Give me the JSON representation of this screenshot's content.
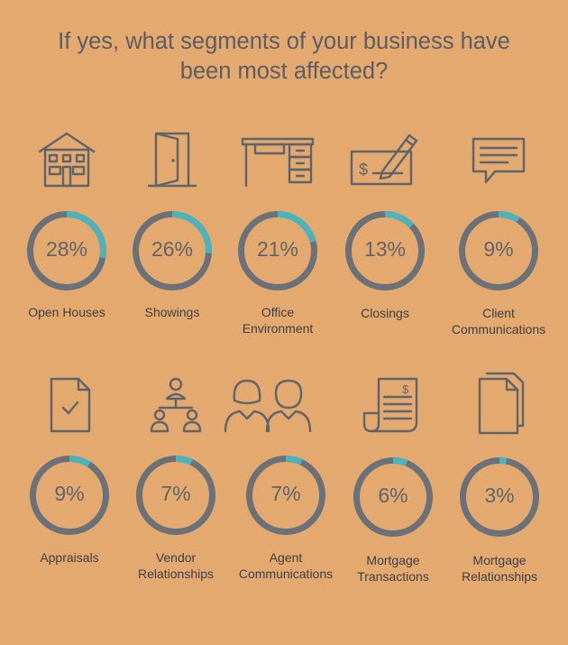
{
  "title": {
    "line1": "If yes, what segments of your business have",
    "line2": "been most affected?"
  },
  "colors": {
    "background": "#e4a96f",
    "ring_track": "#6b7178",
    "ring_value": "#4bb3bd"
  },
  "chart_data": {
    "type": "donut",
    "categories": [
      "Open Houses",
      "Showings",
      "Office Environment",
      "Closings",
      "Client Communications",
      "Appraisals",
      "Vendor Relationships",
      "Agent Communications",
      "Mortgage Transactions",
      "Mortgage Relationships"
    ],
    "values": [
      28,
      26,
      21,
      13,
      9,
      9,
      7,
      7,
      6,
      3
    ],
    "unit": "%"
  },
  "items": [
    {
      "pct": "28%",
      "label1": "Open Houses",
      "label2": "",
      "icon": "house-icon"
    },
    {
      "pct": "26%",
      "label1": "Showings",
      "label2": "",
      "icon": "door-icon"
    },
    {
      "pct": "21%",
      "label1": "Office",
      "label2": "Environment",
      "icon": "desk-icon"
    },
    {
      "pct": "13%",
      "label1": "Closings",
      "label2": "",
      "icon": "check-signing-icon"
    },
    {
      "pct": "9%",
      "label1": "Client",
      "label2": "Communications",
      "icon": "chat-bubble-icon"
    },
    {
      "pct": "9%",
      "label1": "Appraisals",
      "label2": "",
      "icon": "document-check-icon"
    },
    {
      "pct": "7%",
      "label1": "Vendor",
      "label2": "Relationships",
      "icon": "org-chart-icon"
    },
    {
      "pct": "7%",
      "label1": "Agent",
      "label2": "Communications",
      "icon": "people-icon"
    },
    {
      "pct": "6%",
      "label1": "Mortgage",
      "label2": "Transactions",
      "icon": "invoice-scroll-icon"
    },
    {
      "pct": "3%",
      "label1": "Mortgage",
      "label2": "Relationships",
      "icon": "stacked-pages-icon"
    }
  ]
}
